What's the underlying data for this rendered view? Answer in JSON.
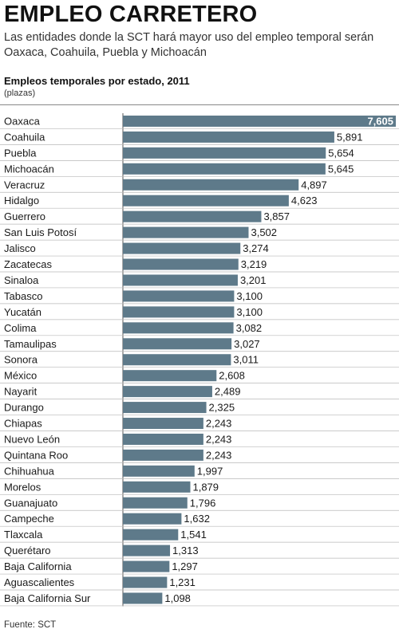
{
  "header": {
    "title": "EMPLEO CARRETERO",
    "subtitle": "Las entidades donde la SCT hará mayor uso del empleo temporal serán Oaxaca, Coahuila, Puebla y Michoacán"
  },
  "chart_data": {
    "type": "bar",
    "orientation": "horizontal",
    "title": "Empleos temporales por estado, 2011",
    "unit": "(plazas)",
    "categories": [
      "Oaxaca",
      "Coahuila",
      "Puebla",
      "Michoacán",
      "Veracruz",
      "Hidalgo",
      "Guerrero",
      "San Luis Potosí",
      "Jalisco",
      "Zacatecas",
      "Sinaloa",
      "Tabasco",
      "Yucatán",
      "Colima",
      "Tamaulipas",
      "Sonora",
      "México",
      "Nayarit",
      "Durango",
      "Chiapas",
      "Nuevo León",
      "Quintana Roo",
      "Chihuahua",
      "Morelos",
      "Guanajuato",
      "Campeche",
      "Tlaxcala",
      "Querétaro",
      "Baja California",
      "Aguascalientes",
      "Baja California Sur"
    ],
    "values": [
      7605,
      5891,
      5654,
      5645,
      4897,
      4623,
      3857,
      3502,
      3274,
      3219,
      3201,
      3100,
      3100,
      3082,
      3027,
      3011,
      2608,
      2489,
      2325,
      2243,
      2243,
      2243,
      1997,
      1879,
      1796,
      1632,
      1541,
      1313,
      1297,
      1231,
      1098
    ],
    "value_labels": [
      "7,605",
      "5,891",
      "5,654",
      "5,645",
      "4,897",
      "4,623",
      "3,857",
      "3,502",
      "3,274",
      "3,219",
      "3,201",
      "3,100",
      "3,100",
      "3,082",
      "3,027",
      "3,011",
      "2,608",
      "2,489",
      "2,325",
      "2,243",
      "2,243",
      "2,243",
      "1,997",
      "1,879",
      "1,796",
      "1,632",
      "1,541",
      "1,313",
      "1,297",
      "1,231",
      "1,098"
    ],
    "xlim": [
      0,
      7605
    ],
    "grid": false,
    "colors": {
      "bar": "#5e7a8a",
      "row_rule": "#b9b9b9",
      "label_inside": "#ffffff",
      "label_outside": "#1a1a1a"
    }
  },
  "footer": {
    "source": "Fuente: SCT"
  }
}
